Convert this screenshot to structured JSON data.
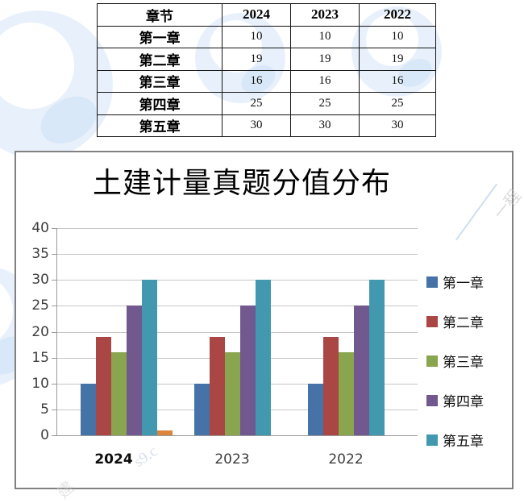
{
  "table": {
    "headers": [
      "章节",
      "2024",
      "2023",
      "2022"
    ],
    "rows": [
      [
        "第一章",
        "10",
        "10",
        "10"
      ],
      [
        "第二章",
        "19",
        "19",
        "19"
      ],
      [
        "第三章",
        "16",
        "16",
        "16"
      ],
      [
        "第四章",
        "25",
        "25",
        "25"
      ],
      [
        "第五章",
        "30",
        "30",
        "30"
      ]
    ]
  },
  "chart_data": {
    "type": "bar",
    "title": "土建计量真题分值分布",
    "categories": [
      "2024",
      "2023",
      "2022"
    ],
    "series": [
      {
        "name": "第一章",
        "color": "#4572A7",
        "values": [
          10,
          10,
          10
        ]
      },
      {
        "name": "第二章",
        "color": "#AA4643",
        "values": [
          19,
          19,
          19
        ]
      },
      {
        "name": "第三章",
        "color": "#89A54E",
        "values": [
          16,
          16,
          16
        ]
      },
      {
        "name": "第四章",
        "color": "#71588F",
        "values": [
          25,
          25,
          25
        ]
      },
      {
        "name": "第五章",
        "color": "#4198AF",
        "values": [
          30,
          30,
          30
        ]
      }
    ],
    "extra_unlabeled_bar": {
      "category": "2024",
      "color": "#DB843D",
      "value": 1
    },
    "ylim": [
      0,
      40
    ],
    "ytick_step": 5,
    "ytick_labels": [
      "40",
      "35",
      "30",
      "25",
      "20",
      "15",
      "10",
      "5",
      "0"
    ],
    "xtick_bold": "2024",
    "grid": true,
    "legend_position": "right"
  },
  "watermark": {
    "fragments": [
      "一程",
      "s9.c",
      "建"
    ]
  }
}
